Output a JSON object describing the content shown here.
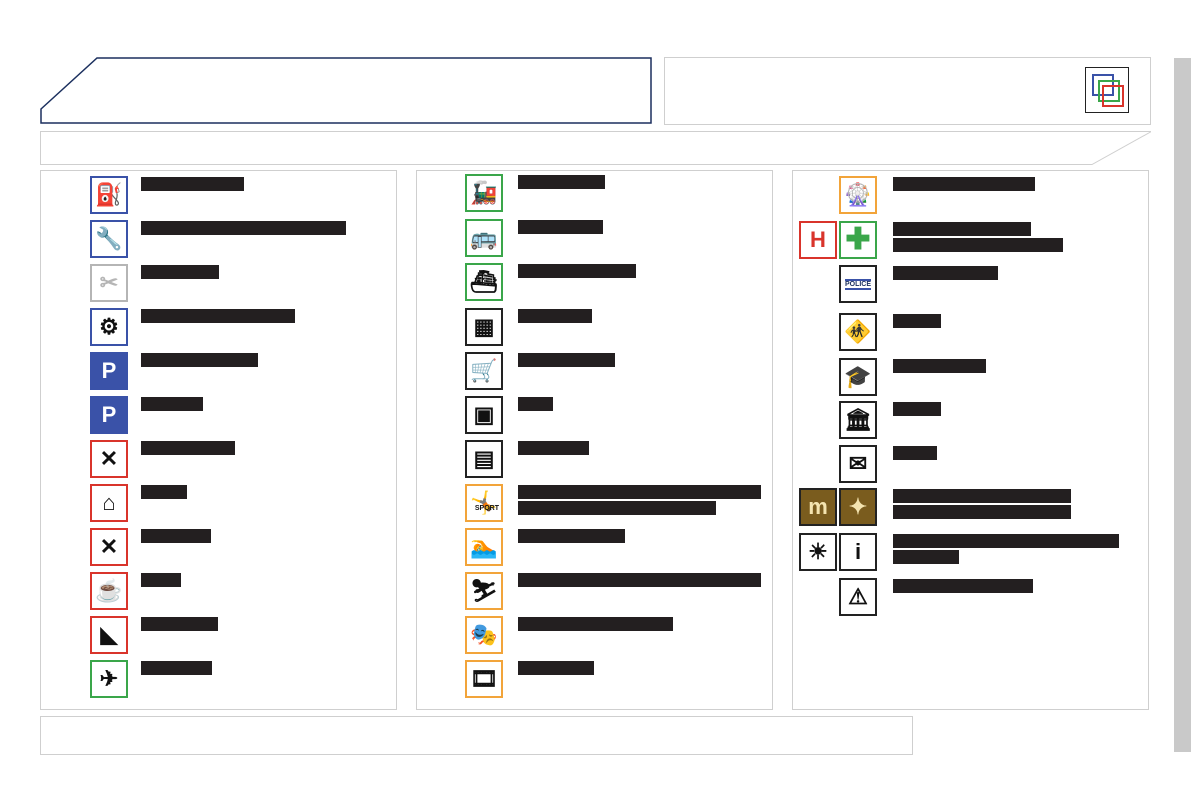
{
  "colors": {
    "title_border": "#1b2f5e",
    "blue": "#3a52a8",
    "red": "#d9342b",
    "green": "#3aa64a",
    "orange": "#f2a43a",
    "black": "#222222",
    "gray": "#b5b5b5",
    "brown": "#7a5c1e"
  },
  "columns": [
    [
      {
        "icon": "fuel-pump-icon",
        "glyph": "⛽",
        "c": "blue"
      },
      {
        "icon": "wrench-icon",
        "glyph": "🔧",
        "c": "blue"
      },
      {
        "icon": "brand-service-icon",
        "glyph": "✂",
        "c": "gray"
      },
      {
        "icon": "conference-icon",
        "glyph": "⚙",
        "c": "blue"
      },
      {
        "icon": "covered-parking-icon",
        "glyph": "P",
        "c": "blue",
        "fill": true
      },
      {
        "icon": "parking-icon",
        "glyph": "P",
        "c": "blue",
        "fill": true
      },
      {
        "icon": "motel-icon",
        "glyph": "✕",
        "c": "red"
      },
      {
        "icon": "hotel-bed-icon",
        "glyph": "⌂",
        "c": "red"
      },
      {
        "icon": "restaurant-icon",
        "glyph": "✕",
        "c": "red"
      },
      {
        "icon": "cafe-icon",
        "glyph": "☕",
        "c": "red"
      },
      {
        "icon": "rest-area-icon",
        "glyph": "◣",
        "c": "red"
      },
      {
        "icon": "airport-icon",
        "glyph": "✈",
        "c": "green"
      }
    ],
    [
      {
        "icon": "train-station-icon",
        "glyph": "🚂",
        "c": "green"
      },
      {
        "icon": "bus-station-icon",
        "glyph": "🚌",
        "c": "green"
      },
      {
        "icon": "ferry-icon",
        "glyph": "⛴",
        "c": "green"
      },
      {
        "icon": "industrial-zone-icon",
        "glyph": "▦",
        "c": "black"
      },
      {
        "icon": "shopping-cart-icon",
        "glyph": "🛒",
        "c": "black"
      },
      {
        "icon": "bank-icon",
        "glyph": "▣",
        "c": "black"
      },
      {
        "icon": "cash-machine-icon",
        "glyph": "▤",
        "c": "black"
      },
      {
        "icon": "sport-icon",
        "glyph": "🤸",
        "c": "orange",
        "label": "SPORT"
      },
      {
        "icon": "swimming-icon",
        "glyph": "🏊",
        "c": "orange"
      },
      {
        "icon": "ski-icon",
        "glyph": "⛷",
        "c": "orange"
      },
      {
        "icon": "theatre-icon",
        "glyph": "🎭",
        "c": "orange"
      },
      {
        "icon": "cinema-icon",
        "glyph": "🎞",
        "c": "orange"
      }
    ],
    [
      {
        "icon": "amusement-park-icon",
        "glyph": "🎡",
        "c": "orange"
      },
      {
        "icon": "hospital-icon",
        "glyph": "✚",
        "c": "green",
        "pair": "H",
        "pair_c": "red"
      },
      {
        "icon": "police-icon",
        "glyph": "",
        "c": "black",
        "label": "POLICE"
      },
      {
        "icon": "school-icon",
        "glyph": "🚸",
        "c": "black"
      },
      {
        "icon": "university-icon",
        "glyph": "🎓",
        "c": "black"
      },
      {
        "icon": "town-hall-icon",
        "glyph": "🏛",
        "c": "black"
      },
      {
        "icon": "post-office-icon",
        "glyph": "✉",
        "c": "black"
      },
      {
        "icon": "monument-icon",
        "glyph": "✦",
        "c": "black",
        "pair": "m",
        "pair_c": "brown",
        "brown": true
      },
      {
        "icon": "tourist-info-icon",
        "glyph": "i",
        "c": "black",
        "pair": "☀",
        "pair_c": "black"
      },
      {
        "icon": "danger-zone-icon",
        "glyph": "⚠",
        "c": "black"
      }
    ]
  ]
}
